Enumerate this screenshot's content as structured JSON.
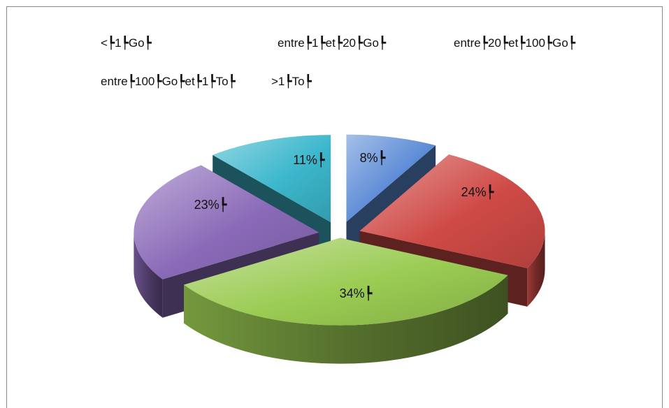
{
  "chart_data": {
    "type": "pie",
    "title": "",
    "categories": [
      "<┡1┡Go┡",
      "entre┡1┡et┡20┡Go┡",
      "entre┡20┡et┡100┡Go┡",
      "entre┡100┡Go┡et┡1┡To┡",
      ">1┡To┡"
    ],
    "values": [
      8,
      24,
      34,
      23,
      11
    ],
    "value_labels": [
      "8%┡",
      "24%┡",
      "34%┡",
      "23%┡",
      "11%┡"
    ],
    "colors": [
      "#5b8bd6",
      "#cf4a46",
      "#9acb52",
      "#8a6ab8",
      "#3cb7cc"
    ],
    "style": "3d-exploded",
    "legend_position": "top"
  }
}
